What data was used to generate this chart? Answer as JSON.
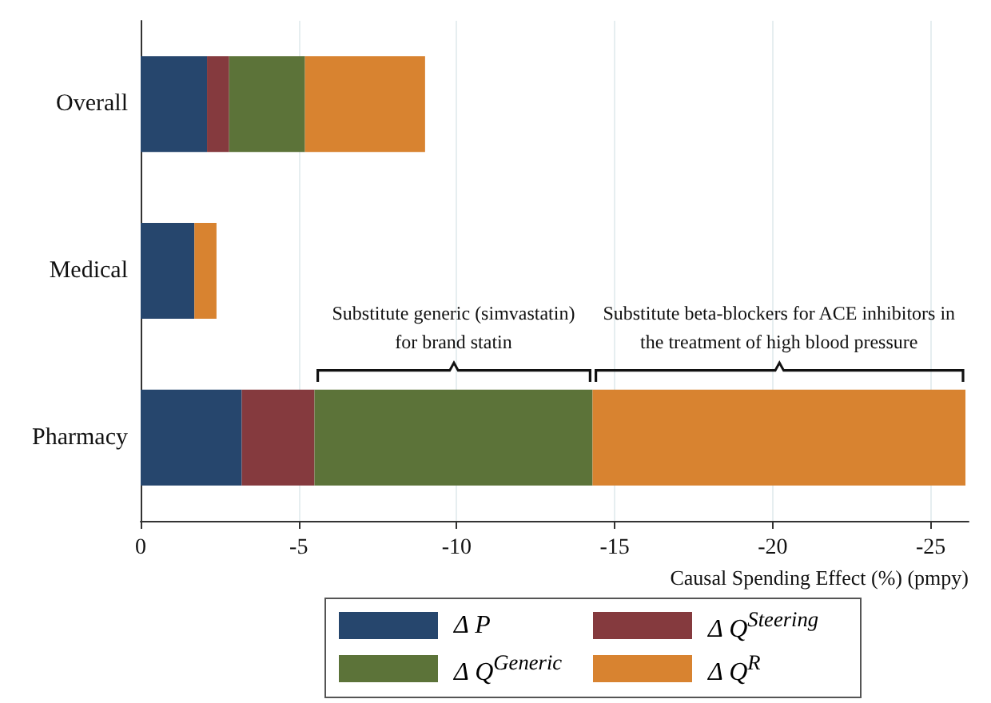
{
  "chart_data": {
    "type": "bar",
    "orientation": "horizontal",
    "stacked": true,
    "categories": [
      "Overall",
      "Medical",
      "Pharmacy"
    ],
    "series": [
      {
        "name": "Δ P",
        "color": "#26466d",
        "values": [
          -2.1,
          -1.7,
          -3.2
        ]
      },
      {
        "name": "Δ Q$^{Steering}$",
        "color": "#853a3e",
        "values": [
          -0.7,
          null,
          -2.3
        ]
      },
      {
        "name": "Δ Q$^{Generic}$",
        "color": "#5c7339",
        "values": [
          -2.4,
          null,
          -8.8
        ]
      },
      {
        "name": "Δ Q$^{R}$",
        "color": "#d88330",
        "values": [
          -3.8,
          -0.7,
          -11.8
        ]
      }
    ],
    "xlim": [
      0,
      -26.2
    ],
    "xticks": [
      0,
      -5,
      -10,
      -15,
      -20,
      -25
    ],
    "grid": "x",
    "legend": "bottom",
    "xlabel": "Causal Spending Effect (%) (pmpy)",
    "annotations": [
      "Substitute generic (simvastatin)\nfor brand statin",
      "Substitute beta-blockers for ACE inhibitors in\nthe treatment of high blood pressure"
    ]
  }
}
